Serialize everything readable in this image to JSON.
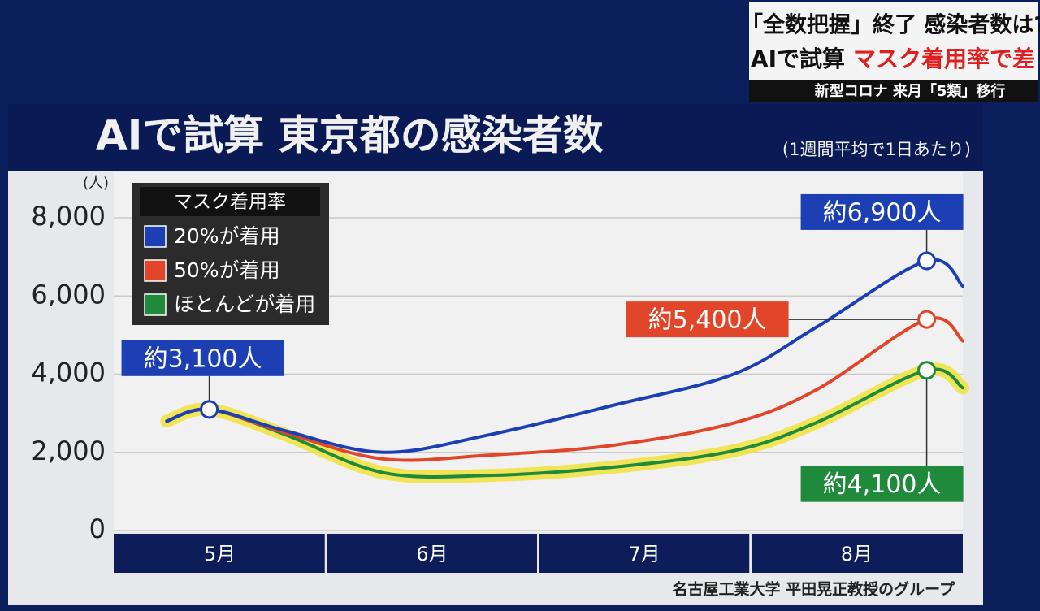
{
  "chart_data": {
    "type": "line",
    "title": "AIで試算 東京都の感染者数",
    "subtitle": "(1週間平均で1日あたり)",
    "y_unit": "(人)",
    "captions": [
      "「全数把握」終了 感染者数は?",
      "AIで試算",
      "マスク着用率で差",
      "新型コロナ 来月「5類」移行"
    ],
    "legend_title": "マスク着用率",
    "source": "名古屋工業大学 平田晃正教授のグループ",
    "categories": [
      "5月",
      "6月",
      "7月",
      "8月"
    ],
    "xlim": [
      5,
      9
    ],
    "x": [
      5.25,
      5.45,
      5.81,
      6.27,
      6.77,
      7.35,
      7.92,
      8.31,
      8.83,
      9.0
    ],
    "ylim": [
      0,
      8000
    ],
    "yticks": [
      {
        "value": 0,
        "label": "0"
      },
      {
        "value": 2000,
        "label": "2,000"
      },
      {
        "value": 4000,
        "label": "4,000"
      },
      {
        "value": 6000,
        "label": "6,000"
      },
      {
        "value": 8000,
        "label": "8,000"
      }
    ],
    "grid": true,
    "series": [
      {
        "name": "20%が着用",
        "color": "#1c3fb4",
        "values": [
          2800,
          3100,
          2550,
          2000,
          2450,
          3200,
          4000,
          5200,
          6900,
          6250
        ],
        "value_labels": [
          null,
          "約3,100人",
          null,
          null,
          null,
          null,
          null,
          null,
          "約6,900人",
          null
        ]
      },
      {
        "name": "50%が着用",
        "color": "#e2462a",
        "values": [
          2800,
          3100,
          2500,
          1830,
          1930,
          2180,
          2750,
          3600,
          5400,
          4850
        ],
        "value_labels": [
          null,
          null,
          null,
          null,
          null,
          null,
          null,
          null,
          "約5,400人",
          null
        ]
      },
      {
        "name": "ほとんどが着用",
        "color": "#1f8a3c",
        "values": [
          2800,
          3100,
          2450,
          1480,
          1410,
          1620,
          2040,
          2760,
          4100,
          3650
        ],
        "value_labels": [
          null,
          null,
          null,
          null,
          null,
          null,
          null,
          null,
          "約4,100人",
          null
        ]
      }
    ]
  }
}
